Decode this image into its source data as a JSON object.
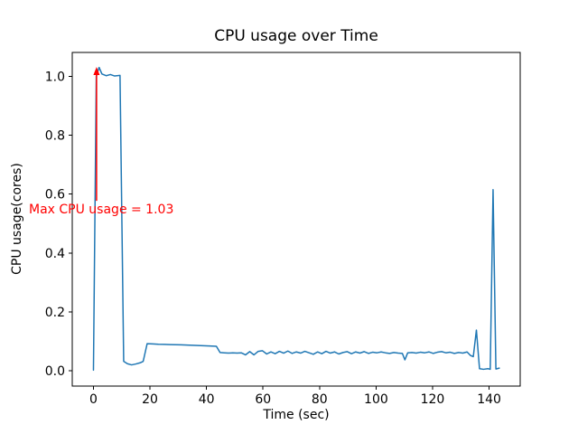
{
  "chart_data": {
    "type": "line",
    "title": "CPU usage over Time",
    "xlabel": "Time (sec)",
    "ylabel": "CPU usage(cores)",
    "line_color": "#1f77b4",
    "line_width": 1.5,
    "grid": false,
    "legend": null,
    "xlim": [
      -7.5,
      151
    ],
    "ylim": [
      -0.052,
      1.081
    ],
    "xticks": [
      0,
      20,
      40,
      60,
      80,
      100,
      120,
      140
    ],
    "xtick_labels": [
      "0",
      "20",
      "40",
      "60",
      "80",
      "100",
      "120",
      "140"
    ],
    "yticks": [
      0.0,
      0.2,
      0.4,
      0.6,
      0.8,
      1.0
    ],
    "ytick_labels": [
      "0.0",
      "0.2",
      "0.4",
      "0.6",
      "0.8",
      "1.0"
    ],
    "axis_color": "#000000",
    "text_color": "#000000",
    "annotation": {
      "text": "Max CPU usage = 1.03",
      "color": "#ff0000",
      "max_value": 1.03,
      "arrow": {
        "x": 1.1,
        "tip_y": 1.032,
        "base_y": 0.577
      }
    },
    "points": [
      [
        0,
        0.002
      ],
      [
        1,
        1.0
      ],
      [
        2,
        1.03
      ],
      [
        3,
        1.008
      ],
      [
        4.5,
        1.002
      ],
      [
        6,
        1.006
      ],
      [
        7.5,
        1.001
      ],
      [
        9.4,
        1.003
      ],
      [
        10.7,
        0.032
      ],
      [
        12,
        0.024
      ],
      [
        13.5,
        0.02
      ],
      [
        15,
        0.023
      ],
      [
        16.5,
        0.027
      ],
      [
        17.6,
        0.032
      ],
      [
        19,
        0.092
      ],
      [
        21,
        0.091
      ],
      [
        23,
        0.09
      ],
      [
        25,
        0.0895
      ],
      [
        27,
        0.089
      ],
      [
        29,
        0.0885
      ],
      [
        31,
        0.088
      ],
      [
        33,
        0.0872
      ],
      [
        35,
        0.0865
      ],
      [
        37,
        0.0858
      ],
      [
        39,
        0.085
      ],
      [
        41,
        0.0842
      ],
      [
        43.5,
        0.083
      ],
      [
        44.8,
        0.062
      ],
      [
        46.3,
        0.061
      ],
      [
        47.8,
        0.06
      ],
      [
        49.3,
        0.061
      ],
      [
        50.8,
        0.06
      ],
      [
        52.3,
        0.061
      ],
      [
        53.8,
        0.054
      ],
      [
        55.3,
        0.065
      ],
      [
        56.8,
        0.054
      ],
      [
        58.3,
        0.066
      ],
      [
        59.8,
        0.068
      ],
      [
        61.3,
        0.057
      ],
      [
        62.8,
        0.064
      ],
      [
        64.3,
        0.058
      ],
      [
        65.8,
        0.066
      ],
      [
        67.3,
        0.06
      ],
      [
        68.8,
        0.067
      ],
      [
        70.3,
        0.059
      ],
      [
        71.8,
        0.064
      ],
      [
        73.3,
        0.06
      ],
      [
        74.8,
        0.066
      ],
      [
        76.3,
        0.061
      ],
      [
        77.8,
        0.056
      ],
      [
        79.3,
        0.064
      ],
      [
        80.8,
        0.058
      ],
      [
        82.3,
        0.066
      ],
      [
        83.8,
        0.06
      ],
      [
        85.3,
        0.064
      ],
      [
        86.8,
        0.057
      ],
      [
        88.3,
        0.062
      ],
      [
        89.8,
        0.065
      ],
      [
        91.3,
        0.058
      ],
      [
        92.8,
        0.064
      ],
      [
        94.3,
        0.06
      ],
      [
        95.8,
        0.065
      ],
      [
        97.3,
        0.059
      ],
      [
        98.8,
        0.063
      ],
      [
        100.3,
        0.061
      ],
      [
        101.8,
        0.064
      ],
      [
        103.3,
        0.061
      ],
      [
        104.8,
        0.059
      ],
      [
        106.3,
        0.062
      ],
      [
        107.8,
        0.06
      ],
      [
        109.3,
        0.059
      ],
      [
        110.2,
        0.037
      ],
      [
        111.2,
        0.061
      ],
      [
        112.7,
        0.062
      ],
      [
        114.2,
        0.06
      ],
      [
        115.7,
        0.063
      ],
      [
        117.2,
        0.061
      ],
      [
        118.7,
        0.064
      ],
      [
        120.2,
        0.059
      ],
      [
        121.7,
        0.063
      ],
      [
        123.2,
        0.065
      ],
      [
        124.7,
        0.061
      ],
      [
        126.2,
        0.063
      ],
      [
        127.7,
        0.059
      ],
      [
        129.2,
        0.062
      ],
      [
        130.7,
        0.06
      ],
      [
        132.2,
        0.064
      ],
      [
        133.4,
        0.052
      ],
      [
        134.4,
        0.048
      ],
      [
        135.5,
        0.138
      ],
      [
        136.6,
        0.007
      ],
      [
        138,
        0.005
      ],
      [
        139.6,
        0.007
      ],
      [
        140.4,
        0.005
      ],
      [
        141.4,
        0.615
      ],
      [
        142.4,
        0.006
      ],
      [
        143.6,
        0.009
      ]
    ]
  }
}
